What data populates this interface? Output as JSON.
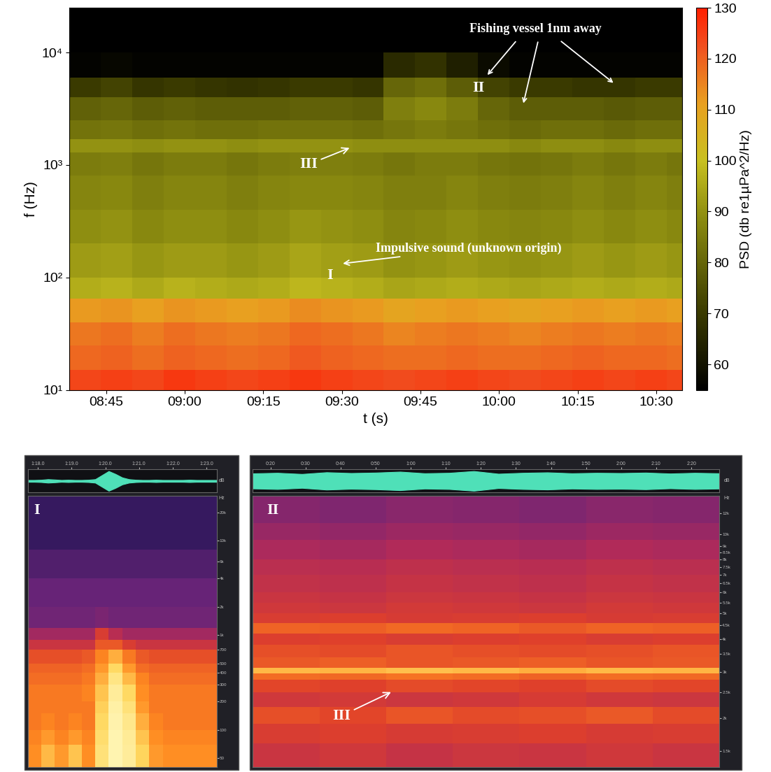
{
  "chart_data": [
    {
      "type": "heatmap",
      "xlabel": "t (s)",
      "ylabel": "f (Hz)",
      "log": "y",
      "xlim": [
        518,
        635
      ],
      "xticks": [
        {
          "value": 525,
          "label": "08:45"
        },
        {
          "value": 540,
          "label": "09:00"
        },
        {
          "value": 555,
          "label": "09:15"
        },
        {
          "value": 570,
          "label": "09:30"
        },
        {
          "value": 585,
          "label": "09:45"
        },
        {
          "value": 600,
          "label": "10:00"
        },
        {
          "value": 615,
          "label": "10:15"
        },
        {
          "value": 630,
          "label": "10:30"
        }
      ],
      "ylim": [
        10,
        25000
      ],
      "yticks": [
        {
          "value": 10,
          "label": "10¹"
        },
        {
          "value": 100,
          "label": "10²"
        },
        {
          "value": 1000,
          "label": "10³"
        },
        {
          "value": 10000,
          "label": "10⁴"
        }
      ],
      "x_edges": [
        518,
        524,
        530,
        536,
        542,
        548,
        554,
        560,
        566,
        572,
        578,
        584,
        590,
        596,
        602,
        608,
        614,
        620,
        626,
        632,
        638
      ],
      "y_edges": [
        10,
        15,
        25,
        40,
        65,
        100,
        200,
        400,
        800,
        1300,
        1700,
        2500,
        4000,
        6000,
        10000,
        25000
      ],
      "cells": [
        [
          124,
          125,
          124,
          126,
          125,
          124,
          125,
          126,
          125,
          124,
          123,
          124,
          125,
          124,
          123,
          124,
          125,
          124,
          125,
          124
        ],
        [
          119,
          120,
          118,
          120,
          119,
          118,
          119,
          121,
          120,
          119,
          118,
          118,
          119,
          118,
          118,
          119,
          120,
          119,
          119,
          118
        ],
        [
          117,
          118,
          116,
          118,
          117,
          116,
          117,
          119,
          118,
          117,
          115,
          116,
          117,
          116,
          115,
          116,
          117,
          116,
          117,
          116
        ],
        [
          112,
          113,
          111,
          113,
          112,
          111,
          112,
          114,
          113,
          112,
          110,
          111,
          112,
          111,
          110,
          111,
          112,
          111,
          112,
          111
        ],
        [
          96,
          97,
          95,
          97,
          96,
          95,
          96,
          98,
          97,
          96,
          94,
          95,
          96,
          95,
          94,
          95,
          96,
          95,
          96,
          95
        ],
        [
          92,
          93,
          91,
          92,
          92,
          91,
          92,
          94,
          93,
          92,
          90,
          91,
          92,
          91,
          90,
          91,
          92,
          91,
          92,
          91
        ],
        [
          89,
          90,
          88,
          89,
          89,
          88,
          89,
          91,
          90,
          89,
          87,
          88,
          89,
          88,
          87,
          88,
          89,
          88,
          89,
          88
        ],
        [
          87,
          88,
          86,
          87,
          87,
          86,
          87,
          88,
          88,
          87,
          86,
          86,
          87,
          86,
          85,
          86,
          87,
          86,
          87,
          86
        ],
        [
          85,
          86,
          84,
          85,
          85,
          84,
          85,
          86,
          86,
          85,
          84,
          85,
          85,
          84,
          83,
          84,
          85,
          84,
          85,
          84
        ],
        [
          90,
          90,
          89,
          90,
          90,
          89,
          90,
          90,
          90,
          89,
          89,
          89,
          89,
          89,
          88,
          89,
          89,
          88,
          89,
          89
        ],
        [
          83,
          84,
          82,
          83,
          82,
          82,
          83,
          83,
          83,
          82,
          84,
          85,
          84,
          82,
          81,
          82,
          82,
          81,
          82,
          82
        ],
        [
          79,
          80,
          78,
          79,
          78,
          78,
          78,
          79,
          79,
          78,
          86,
          88,
          85,
          80,
          78,
          78,
          78,
          77,
          78,
          78
        ],
        [
          70,
          72,
          69,
          70,
          69,
          68,
          69,
          70,
          70,
          69,
          80,
          82,
          78,
          72,
          70,
          70,
          69,
          69,
          70,
          70
        ],
        [
          56,
          57,
          56,
          56,
          56,
          56,
          56,
          56,
          56,
          56,
          66,
          68,
          63,
          58,
          56,
          56,
          56,
          56,
          56,
          56
        ],
        [
          55,
          55,
          55,
          55,
          55,
          55,
          55,
          55,
          55,
          55,
          55,
          55,
          55,
          55,
          55,
          55,
          55,
          55,
          55,
          55
        ]
      ],
      "colorbar": {
        "label": "PSD (db re1µPa^2/Hz)",
        "range": [
          55,
          130
        ],
        "ticks": [
          60,
          70,
          80,
          90,
          100,
          110,
          120,
          130
        ]
      },
      "annotations": [
        "Fishing vessel 1nm away",
        "II",
        "III",
        "I",
        "Impulsive sound (unknown origin)"
      ]
    },
    {
      "type": "heatmap",
      "title": "I",
      "log": "y",
      "y_unit": "Hz",
      "xlim": [
        77.7,
        83.3
      ],
      "xticks": [
        {
          "value": 78,
          "label": "1:18.0"
        },
        {
          "value": 79,
          "label": "1:19.0"
        },
        {
          "value": 80,
          "label": "1:20.0"
        },
        {
          "value": 81,
          "label": "1:21.0"
        },
        {
          "value": 82,
          "label": "1:22.0"
        },
        {
          "value": 83,
          "label": "1:23.0"
        }
      ],
      "ylim": [
        40,
        30000
      ],
      "yticks": [
        {
          "value": 20000,
          "label": "20k"
        },
        {
          "value": 10000,
          "label": "10k"
        },
        {
          "value": 6000,
          "label": "6k"
        },
        {
          "value": 4000,
          "label": "4k"
        },
        {
          "value": 2000,
          "label": "2k"
        },
        {
          "value": 1000,
          "label": "1k"
        },
        700,
        500,
        400,
        300,
        200,
        100,
        50
      ],
      "x_edges": [
        77.7,
        78.1,
        78.5,
        78.9,
        79.3,
        79.7,
        80.1,
        80.5,
        80.9,
        81.3,
        81.7,
        82.1,
        82.5,
        82.9,
        83.3
      ],
      "y_edges": [
        40,
        70,
        100,
        150,
        200,
        300,
        400,
        500,
        700,
        900,
        1200,
        2000,
        4000,
        8000,
        30000
      ],
      "color_range": [
        0,
        100
      ],
      "cells": [
        [
          72,
          80,
          74,
          82,
          72,
          90,
          100,
          96,
          85,
          74,
          72,
          72,
          72,
          72
        ],
        [
          70,
          74,
          70,
          74,
          70,
          88,
          100,
          95,
          82,
          72,
          70,
          70,
          70,
          70
        ],
        [
          68,
          70,
          68,
          70,
          68,
          86,
          99,
          93,
          78,
          70,
          68,
          68,
          68,
          68
        ],
        [
          68,
          68,
          68,
          68,
          68,
          84,
          98,
          90,
          74,
          68,
          68,
          68,
          68,
          68
        ],
        [
          68,
          68,
          68,
          68,
          70,
          82,
          96,
          86,
          72,
          68,
          68,
          68,
          68,
          68
        ],
        [
          66,
          66,
          66,
          66,
          68,
          78,
          92,
          80,
          70,
          66,
          66,
          66,
          66,
          66
        ],
        [
          64,
          64,
          64,
          64,
          66,
          74,
          86,
          74,
          66,
          64,
          64,
          64,
          64,
          64
        ],
        [
          60,
          60,
          60,
          60,
          62,
          70,
          78,
          68,
          62,
          60,
          60,
          60,
          60,
          60
        ],
        [
          50,
          50,
          50,
          50,
          50,
          62,
          62,
          55,
          50,
          50,
          50,
          50,
          50,
          50
        ],
        [
          40,
          40,
          40,
          40,
          40,
          55,
          45,
          40,
          40,
          40,
          40,
          40,
          40,
          40
        ],
        [
          30,
          30,
          30,
          30,
          30,
          32,
          30,
          30,
          30,
          30,
          30,
          30,
          30,
          30
        ],
        [
          28,
          28,
          28,
          28,
          28,
          28,
          28,
          28,
          28,
          28,
          28,
          28,
          28,
          28
        ],
        [
          22,
          22,
          22,
          22,
          22,
          22,
          22,
          22,
          22,
          22,
          22,
          22,
          22,
          22
        ],
        [
          15,
          15,
          15,
          15,
          15,
          15,
          15,
          15,
          15,
          15,
          15,
          15,
          15,
          15
        ]
      ],
      "waveform": {
        "unit": "dB",
        "ylim": [
          -1,
          1
        ],
        "x": [
          77.7,
          77.9,
          78.1,
          78.3,
          78.5,
          78.7,
          78.9,
          79.1,
          79.3,
          79.5,
          79.7,
          79.9,
          80.1,
          80.3,
          80.5,
          80.7,
          80.9,
          81.1,
          81.3,
          81.5,
          81.7,
          81.9,
          82.1,
          82.3,
          82.5,
          82.7,
          82.9,
          83.1,
          83.3
        ],
        "values": [
          0.08,
          0.08,
          0.1,
          0.15,
          0.12,
          0.08,
          0.1,
          0.08,
          0.08,
          0.1,
          0.15,
          0.5,
          0.85,
          0.6,
          0.3,
          0.15,
          0.1,
          0.08,
          0.08,
          0.1,
          0.08,
          0.08,
          0.08,
          0.08,
          0.1,
          0.08,
          0.08,
          0.08,
          0.08
        ]
      }
    },
    {
      "type": "heatmap",
      "title": "II",
      "log": "y",
      "y_unit": "Hz",
      "xlim": [
        15,
        148
      ],
      "xticks": [
        {
          "value": 20,
          "label": "0:20"
        },
        {
          "value": 30,
          "label": "0:30"
        },
        {
          "value": 40,
          "label": "0:40"
        },
        {
          "value": 50,
          "label": "0:50"
        },
        {
          "value": 60,
          "label": "1:00"
        },
        {
          "value": 70,
          "label": "1:10"
        },
        {
          "value": 80,
          "label": "1:20"
        },
        {
          "value": 90,
          "label": "1:30"
        },
        {
          "value": 100,
          "label": "1:40"
        },
        {
          "value": 110,
          "label": "1:50"
        },
        {
          "value": 120,
          "label": "2:00"
        },
        {
          "value": 130,
          "label": "2:10"
        },
        {
          "value": 140,
          "label": "2:20"
        }
      ],
      "ylim": [
        1300,
        14000
      ],
      "yticks": [
        {
          "value": 12000,
          "label": "12k"
        },
        {
          "value": 10000,
          "label": "10k"
        },
        {
          "value": 9000,
          "label": "9k"
        },
        {
          "value": 8500,
          "label": "8.5k"
        },
        {
          "value": 8000,
          "label": "8k"
        },
        {
          "value": 7500,
          "label": "7.5k"
        },
        {
          "value": 7000,
          "label": "7k"
        },
        {
          "value": 6500,
          "label": "6.5k"
        },
        {
          "value": 6000,
          "label": "6k"
        },
        {
          "value": 5500,
          "label": "5.5k"
        },
        {
          "value": 5000,
          "label": "5k"
        },
        {
          "value": 4500,
          "label": "4.5k"
        },
        {
          "value": 4000,
          "label": "4k"
        },
        {
          "value": 3500,
          "label": "3.5k"
        },
        {
          "value": 3000,
          "label": "3k"
        },
        {
          "value": 2500,
          "label": "2.5k"
        },
        {
          "value": 2000,
          "label": "2k"
        },
        {
          "value": 1500,
          "label": "1.5k"
        }
      ],
      "x_edges": [
        15,
        34,
        53,
        72,
        91,
        110,
        129,
        148
      ],
      "y_edges": [
        1300,
        1600,
        1900,
        2200,
        2500,
        2800,
        2950,
        3100,
        3400,
        3800,
        4200,
        4600,
        5000,
        5500,
        6000,
        7000,
        8000,
        9500,
        11000,
        14000
      ],
      "color_range": [
        0,
        100
      ],
      "cells": [
        [
          50,
          52,
          49,
          51,
          50,
          52,
          50
        ],
        [
          55,
          56,
          54,
          55,
          56,
          54,
          55
        ],
        [
          60,
          58,
          61,
          59,
          60,
          62,
          59
        ],
        [
          52,
          53,
          51,
          52,
          54,
          52,
          51
        ],
        [
          58,
          57,
          59,
          58,
          57,
          59,
          58
        ],
        [
          66,
          65,
          67,
          66,
          64,
          66,
          65
        ],
        [
          80,
          79,
          81,
          80,
          78,
          80,
          79
        ],
        [
          62,
          63,
          61,
          62,
          63,
          61,
          62
        ],
        [
          60,
          59,
          61,
          60,
          59,
          60,
          61
        ],
        [
          56,
          57,
          55,
          56,
          57,
          55,
          56
        ],
        [
          64,
          63,
          65,
          64,
          62,
          64,
          63
        ],
        [
          55,
          56,
          54,
          55,
          56,
          54,
          55
        ],
        [
          52,
          51,
          53,
          52,
          51,
          53,
          52
        ],
        [
          50,
          49,
          51,
          50,
          49,
          51,
          50
        ],
        [
          48,
          47,
          49,
          48,
          47,
          49,
          48
        ],
        [
          46,
          45,
          47,
          46,
          45,
          47,
          46
        ],
        [
          42,
          41,
          43,
          42,
          41,
          43,
          42
        ],
        [
          38,
          37,
          39,
          38,
          37,
          39,
          38
        ],
        [
          34,
          33,
          35,
          34,
          33,
          35,
          34
        ]
      ],
      "annotations": [
        "III"
      ],
      "waveform": {
        "unit": "dB",
        "ylim": [
          -1,
          1
        ],
        "x": [
          15,
          22,
          29,
          36,
          43,
          50,
          57,
          64,
          71,
          78,
          85,
          92,
          99,
          106,
          113,
          120,
          127,
          134,
          141,
          148
        ],
        "values": [
          0.65,
          0.7,
          0.6,
          0.75,
          0.68,
          0.72,
          0.8,
          0.66,
          0.7,
          0.85,
          0.62,
          0.7,
          0.74,
          0.66,
          0.7,
          0.68,
          0.72,
          0.64,
          0.7,
          0.66
        ]
      }
    }
  ]
}
